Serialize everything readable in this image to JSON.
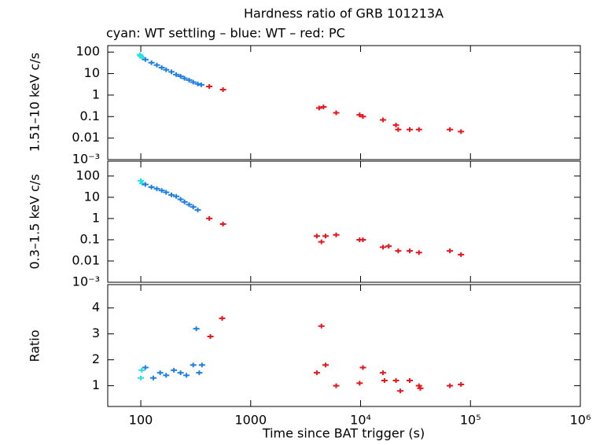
{
  "chart_data": [
    {
      "type": "scatter",
      "title": "Hardness ratio of GRB 101213A",
      "subtitle": "cyan: WT settling – blue: WT – red: PC",
      "ylabel": "1.51–10 keV c/s",
      "x_log": true,
      "y_log": true,
      "xlim": [
        50,
        1000000
      ],
      "xticks": [
        100,
        1000,
        10000,
        100000,
        1000000
      ],
      "ylim": [
        0.001,
        200
      ],
      "yticks": [
        {
          "value": 0.001,
          "label": "10⁻³"
        },
        0.01,
        0.1,
        1,
        10,
        100
      ],
      "series": [
        {
          "name": "WT settling",
          "color": "#22e0e8",
          "x": [
            98,
            100,
            103
          ],
          "values": [
            75,
            65,
            55
          ]
        },
        {
          "name": "WT",
          "color": "#1e7fe0",
          "x": [
            110,
            125,
            140,
            155,
            170,
            190,
            210,
            230,
            250,
            275,
            300,
            330,
            355
          ],
          "values": [
            45,
            32,
            25,
            19,
            15,
            12,
            9,
            7.5,
            6,
            5,
            4,
            3.3,
            3
          ]
        },
        {
          "name": "PC",
          "color": "#e8161a",
          "x": [
            420,
            560,
            4200,
            4600,
            6000,
            9800,
            10500,
            16000,
            21000,
            22000,
            28000,
            34000,
            65000,
            82000
          ],
          "values": [
            2.5,
            1.8,
            0.25,
            0.28,
            0.15,
            0.12,
            0.1,
            0.07,
            0.04,
            0.025,
            0.025,
            0.025,
            0.025,
            0.02
          ]
        }
      ]
    },
    {
      "type": "scatter",
      "ylabel": "0.3–1.5 keV c/s",
      "x_log": true,
      "y_log": true,
      "xlim": [
        50,
        1000000
      ],
      "xticks": [
        100,
        1000,
        10000,
        100000,
        1000000
      ],
      "ylim": [
        0.001,
        500
      ],
      "yticks": [
        {
          "value": 0.001,
          "label": "10⁻³"
        },
        0.01,
        0.1,
        1,
        10,
        100
      ],
      "series": [
        {
          "name": "WT settling",
          "color": "#22e0e8",
          "x": [
            100,
            103
          ],
          "values": [
            60,
            45
          ]
        },
        {
          "name": "WT",
          "color": "#1e7fe0",
          "x": [
            110,
            125,
            140,
            155,
            170,
            190,
            210,
            230,
            250,
            275,
            300,
            330
          ],
          "values": [
            40,
            30,
            25,
            21,
            17,
            13,
            11,
            8,
            6,
            4.5,
            3.5,
            2.5
          ]
        },
        {
          "name": "PC",
          "color": "#e8161a",
          "x": [
            420,
            560,
            4000,
            4400,
            4800,
            6000,
            9800,
            10500,
            16000,
            18000,
            22000,
            28000,
            34000,
            65000,
            82000
          ],
          "values": [
            1,
            0.55,
            0.15,
            0.08,
            0.15,
            0.17,
            0.1,
            0.1,
            0.045,
            0.05,
            0.03,
            0.03,
            0.025,
            0.03,
            0.02
          ]
        }
      ]
    },
    {
      "type": "scatter",
      "ylabel": "Ratio",
      "xlabel": "Time since BAT trigger (s)",
      "x_log": true,
      "y_log": false,
      "xlim": [
        50,
        1000000
      ],
      "xticks": [
        100,
        1000,
        {
          "value": 10000,
          "label": "10⁴"
        },
        {
          "value": 100000,
          "label": "10⁵"
        },
        {
          "value": 1000000,
          "label": "10⁶"
        }
      ],
      "ylim": [
        0.2,
        4.9
      ],
      "yticks": [
        1,
        2,
        3,
        4
      ],
      "series": [
        {
          "name": "WT settling",
          "color": "#22e0e8",
          "x": [
            100,
            102
          ],
          "values": [
            1.3,
            1.6
          ]
        },
        {
          "name": "WT",
          "color": "#1e7fe0",
          "x": [
            110,
            130,
            150,
            170,
            200,
            230,
            260,
            300,
            320,
            340,
            360
          ],
          "values": [
            1.7,
            1.3,
            1.5,
            1.4,
            1.6,
            1.5,
            1.4,
            1.8,
            3.2,
            1.5,
            1.8
          ]
        },
        {
          "name": "PC",
          "color": "#e8161a",
          "x": [
            430,
            550,
            4000,
            4400,
            4800,
            6000,
            9800,
            10500,
            16000,
            16500,
            21000,
            23000,
            28000,
            34000,
            35000,
            65000,
            82000
          ],
          "values": [
            2.9,
            3.6,
            1.5,
            3.3,
            1.8,
            1.0,
            1.1,
            1.7,
            1.5,
            1.2,
            1.2,
            0.8,
            1.2,
            1.0,
            0.9,
            1.0,
            1.05
          ]
        }
      ]
    }
  ]
}
